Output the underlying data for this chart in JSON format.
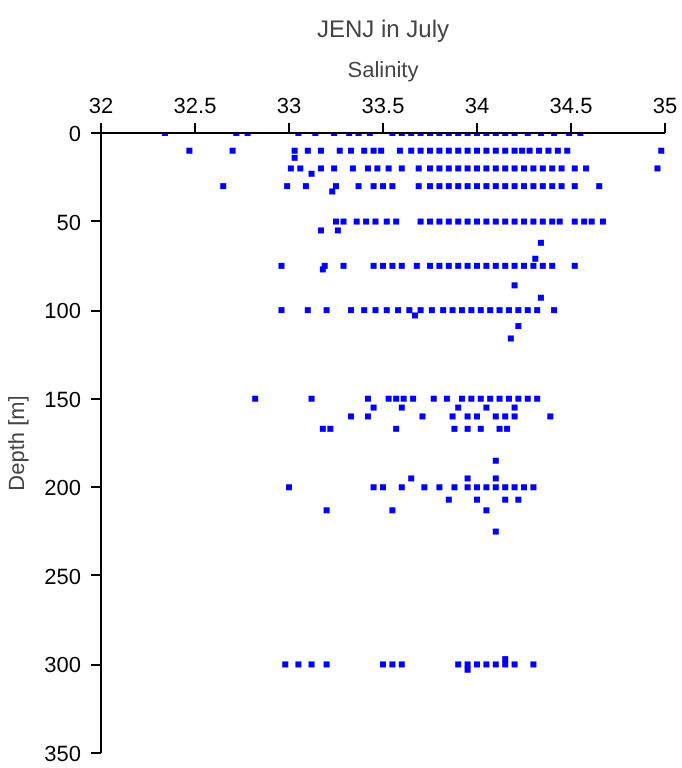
{
  "chart_data": {
    "type": "scatter",
    "title": "JENJ in July",
    "xlabel": "Salinity",
    "ylabel": "Depth [m]",
    "xlim": [
      32,
      35
    ],
    "xticks": [
      32,
      32.5,
      33,
      33.5,
      34,
      34.5,
      35
    ],
    "ylim": [
      350,
      0
    ],
    "yticks": [
      0,
      50,
      100,
      150,
      200,
      250,
      300,
      350
    ],
    "grid": false,
    "marker": "square",
    "series": [
      {
        "color": "#0000ff",
        "x": [
          32.34,
          32.72,
          32.78,
          33.05,
          33.14,
          33.24,
          33.32,
          33.37,
          33.43,
          33.55,
          33.6,
          33.65,
          33.7,
          33.75,
          33.8,
          33.85,
          33.9,
          33.95,
          34.0,
          34.05,
          34.1,
          34.15,
          34.2,
          34.27,
          34.34,
          34.41,
          34.49,
          34.55
        ],
        "values": [
          0,
          0,
          0,
          0,
          0,
          0,
          0,
          0,
          0,
          0,
          0,
          0,
          0,
          0,
          0,
          0,
          0,
          0,
          0,
          0,
          0,
          0,
          0,
          0,
          0,
          0,
          0,
          0
        ]
      },
      {
        "color": "#0000ff",
        "x": [
          32.47,
          32.7,
          33.03,
          33.1,
          33.17,
          33.27,
          33.33,
          33.4,
          33.45,
          33.49,
          33.59,
          33.65,
          33.7,
          33.75,
          33.8,
          33.85,
          33.9,
          33.95,
          34.0,
          34.05,
          34.1,
          34.15,
          34.2,
          34.24,
          34.28,
          34.33,
          34.38,
          34.43,
          34.48,
          34.98,
          33.03
        ],
        "values": [
          10,
          10,
          10,
          10,
          10,
          10,
          10,
          10,
          10,
          10,
          10,
          10,
          10,
          10,
          10,
          10,
          10,
          10,
          10,
          10,
          10,
          10,
          10,
          10,
          10,
          10,
          10,
          10,
          10,
          10,
          14
        ]
      },
      {
        "color": "#0000ff",
        "x": [
          33.01,
          33.06,
          33.17,
          33.24,
          33.34,
          33.42,
          33.47,
          33.53,
          33.6,
          33.69,
          33.75,
          33.8,
          33.85,
          33.9,
          33.95,
          34.0,
          34.05,
          34.1,
          34.15,
          34.2,
          34.25,
          34.3,
          34.35,
          34.4,
          34.45,
          34.52,
          34.58,
          34.96,
          33.12
        ],
        "values": [
          20,
          20,
          20,
          20,
          20,
          20,
          20,
          20,
          20,
          20,
          20,
          20,
          20,
          20,
          20,
          20,
          20,
          20,
          20,
          20,
          20,
          20,
          20,
          20,
          20,
          20,
          20,
          20,
          23
        ]
      },
      {
        "color": "#0000ff",
        "x": [
          32.65,
          32.99,
          33.09,
          33.25,
          33.37,
          33.45,
          33.5,
          33.55,
          33.69,
          33.75,
          33.8,
          33.85,
          33.9,
          33.95,
          34.0,
          34.05,
          34.1,
          34.15,
          34.2,
          34.25,
          34.3,
          34.35,
          34.4,
          34.45,
          34.52,
          34.65,
          33.23
        ],
        "values": [
          30,
          30,
          30,
          30,
          30,
          30,
          30,
          30,
          30,
          30,
          30,
          30,
          30,
          30,
          30,
          30,
          30,
          30,
          30,
          30,
          30,
          30,
          30,
          30,
          30,
          30,
          33
        ]
      },
      {
        "color": "#0000ff",
        "x": [
          33.25,
          33.29,
          33.36,
          33.41,
          33.46,
          33.52,
          33.57,
          33.7,
          33.75,
          33.8,
          33.85,
          33.9,
          33.95,
          34.0,
          34.05,
          34.1,
          34.15,
          34.2,
          34.25,
          34.3,
          34.35,
          34.4,
          34.44,
          34.52,
          34.57,
          34.61,
          34.67,
          33.17,
          33.26,
          34.34
        ],
        "values": [
          50,
          50,
          50,
          50,
          50,
          50,
          50,
          50,
          50,
          50,
          50,
          50,
          50,
          50,
          50,
          50,
          50,
          50,
          50,
          50,
          50,
          50,
          50,
          50,
          50,
          50,
          50,
          55,
          55,
          62
        ]
      },
      {
        "color": "#0000ff",
        "x": [
          32.96,
          33.19,
          33.29,
          33.45,
          33.5,
          33.55,
          33.6,
          33.68,
          33.75,
          33.8,
          33.85,
          33.9,
          33.95,
          34.0,
          34.05,
          34.1,
          34.15,
          34.2,
          34.25,
          34.3,
          34.35,
          34.4,
          34.52,
          34.31,
          33.18,
          34.2,
          34.34
        ],
        "values": [
          75,
          75,
          75,
          75,
          75,
          75,
          75,
          75,
          75,
          75,
          75,
          75,
          75,
          75,
          75,
          75,
          75,
          75,
          75,
          75,
          75,
          75,
          75,
          71,
          77,
          86,
          93
        ]
      },
      {
        "color": "#0000ff",
        "x": [
          32.96,
          33.1,
          33.2,
          33.33,
          33.4,
          33.46,
          33.52,
          33.58,
          33.64,
          33.7,
          33.76,
          33.82,
          33.87,
          33.92,
          33.97,
          34.02,
          34.07,
          34.12,
          34.17,
          34.22,
          34.27,
          34.32,
          34.41,
          33.67,
          34.22,
          34.18
        ],
        "values": [
          100,
          100,
          100,
          100,
          100,
          100,
          100,
          100,
          100,
          100,
          100,
          100,
          100,
          100,
          100,
          100,
          100,
          100,
          100,
          100,
          100,
          100,
          100,
          103,
          109,
          116
        ]
      },
      {
        "color": "#0000ff",
        "x": [
          32.82,
          33.12,
          33.42,
          33.53,
          33.57,
          33.61,
          33.66,
          33.77,
          33.84,
          33.92,
          33.97,
          34.02,
          34.07,
          34.12,
          34.17,
          34.22,
          34.27,
          34.32,
          33.45,
          33.6,
          33.9,
          34.05,
          34.2,
          33.33,
          33.42,
          33.71,
          33.87,
          33.95,
          34.0,
          34.1,
          34.15,
          34.2,
          34.39,
          33.18,
          33.22,
          33.57,
          33.88,
          33.95,
          34.02,
          34.12,
          34.16
        ],
        "values": [
          150,
          150,
          150,
          150,
          150,
          150,
          150,
          150,
          150,
          150,
          150,
          150,
          150,
          150,
          150,
          150,
          150,
          150,
          155,
          155,
          155,
          155,
          155,
          160,
          160,
          160,
          160,
          160,
          160,
          160,
          160,
          160,
          160,
          167,
          167,
          167,
          167,
          167,
          167,
          167,
          167
        ]
      },
      {
        "color": "#0000ff",
        "x": [
          33.0,
          33.45,
          33.5,
          33.6,
          33.72,
          33.8,
          33.88,
          33.95,
          34.0,
          34.05,
          34.1,
          34.15,
          34.2,
          34.25,
          34.3,
          33.65,
          33.95,
          34.1,
          33.85,
          34.0,
          34.15,
          34.22,
          33.2,
          33.55,
          34.05,
          34.1,
          34.1
        ],
        "values": [
          200,
          200,
          200,
          200,
          200,
          200,
          200,
          200,
          200,
          200,
          200,
          200,
          200,
          200,
          200,
          195,
          195,
          195,
          207,
          207,
          207,
          207,
          213,
          213,
          213,
          225,
          185
        ]
      },
      {
        "color": "#0000ff",
        "x": [
          32.98,
          33.05,
          33.12,
          33.2,
          33.5,
          33.55,
          33.6,
          33.9,
          33.95,
          34.0,
          34.05,
          34.1,
          34.15,
          34.2,
          34.3,
          34.15,
          33.95
        ],
        "values": [
          300,
          300,
          300,
          300,
          300,
          300,
          300,
          300,
          300,
          300,
          300,
          300,
          300,
          300,
          300,
          297,
          303
        ]
      }
    ]
  }
}
